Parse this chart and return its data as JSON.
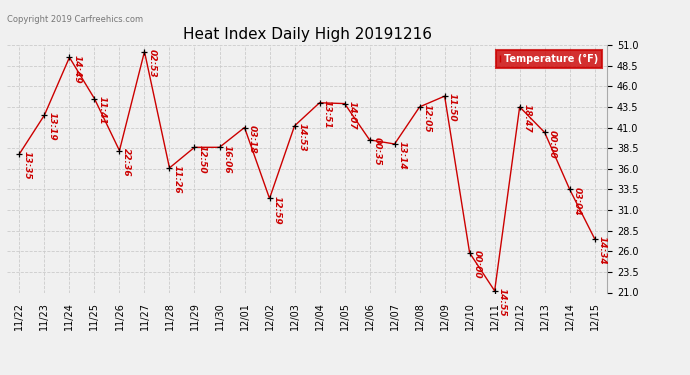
{
  "title": "Heat Index Daily High 20191216",
  "copyright": "Copyright 2019 Carfreehics.com",
  "legend_label": "Temperature (°F)",
  "legend_bg": "#cc0000",
  "legend_text_color": "#ffffff",
  "x_labels": [
    "11/22",
    "11/23",
    "11/24",
    "11/25",
    "11/26",
    "11/27",
    "11/28",
    "11/29",
    "11/30",
    "12/01",
    "12/02",
    "12/03",
    "12/04",
    "12/05",
    "12/06",
    "12/07",
    "12/08",
    "12/09",
    "12/10",
    "12/11",
    "12/12",
    "12/13",
    "12/14",
    "12/15"
  ],
  "values": [
    37.8,
    42.5,
    49.5,
    44.5,
    38.2,
    50.2,
    36.1,
    38.6,
    38.6,
    41.0,
    32.4,
    41.2,
    44.0,
    43.9,
    39.5,
    39.0,
    43.5,
    44.8,
    25.8,
    21.2,
    43.5,
    40.4,
    33.5,
    27.5
  ],
  "labels": [
    "13:35",
    "13:19",
    "14:49",
    "11:41",
    "22:36",
    "02:53",
    "11:26",
    "12:50",
    "16:06",
    "03:18",
    "12:59",
    "14:53",
    "13:51",
    "14:07",
    "00:35",
    "13:14",
    "12:05",
    "11:50",
    "00:00",
    "14:55",
    "18:47",
    "00:00",
    "03:04",
    "14:34"
  ],
  "ylim": [
    21.0,
    51.0
  ],
  "yticks": [
    21.0,
    23.5,
    26.0,
    28.5,
    31.0,
    33.5,
    36.0,
    38.5,
    41.0,
    43.5,
    46.0,
    48.5,
    51.0
  ],
  "line_color": "#cc0000",
  "marker_color": "#000000",
  "label_color": "#cc0000",
  "bg_color": "#f0f0f0",
  "grid_color": "#cccccc",
  "title_color": "#000000",
  "title_fontsize": 11,
  "axis_fontsize": 7,
  "label_fontsize": 6.5
}
